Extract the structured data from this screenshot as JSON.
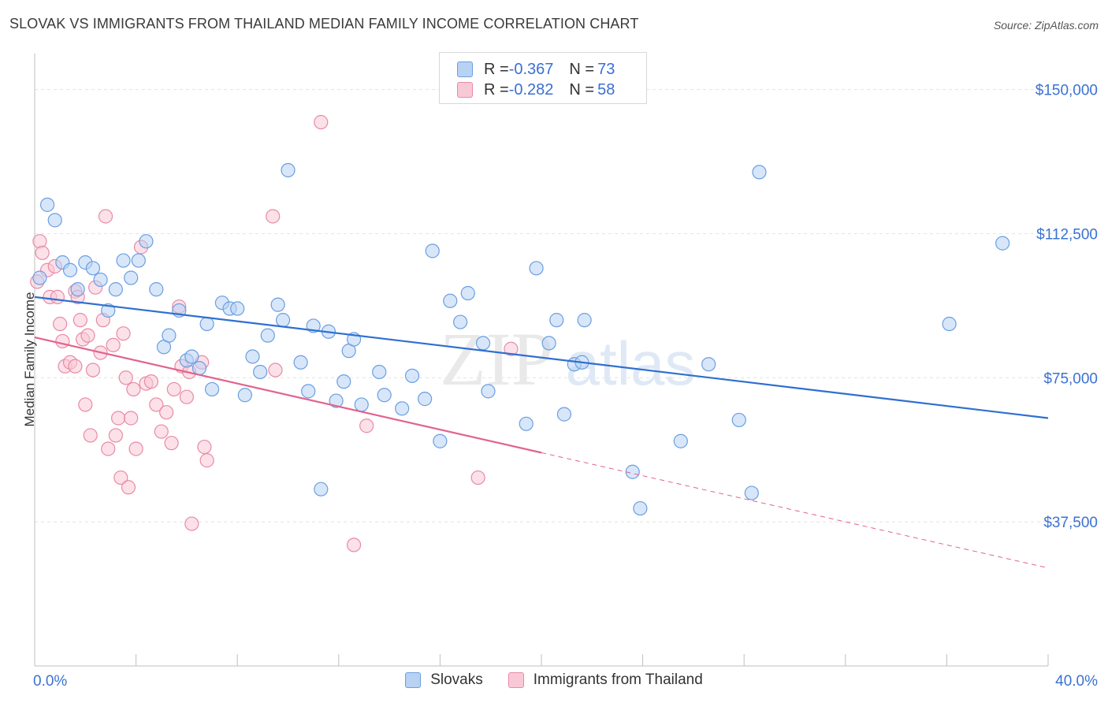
{
  "header": {
    "title": "SLOVAK VS IMMIGRANTS FROM THAILAND MEDIAN FAMILY INCOME CORRELATION CHART",
    "source": "Source: ZipAtlas.com"
  },
  "legend_top": {
    "rows": [
      {
        "r_label": "R = ",
        "r_value": "-0.367",
        "n_label": "N = ",
        "n_value": "73"
      },
      {
        "r_label": "R = ",
        "r_value": "-0.282",
        "n_label": "N = ",
        "n_value": "58"
      }
    ]
  },
  "watermark": {
    "zip": "ZIP",
    "atlas": "atlas"
  },
  "colors": {
    "blue_fill": "#b8d2f4",
    "blue_stroke": "#6a9fe0",
    "blue_line": "#2f6fd0",
    "pink_fill": "#f9c8d6",
    "pink_stroke": "#e98aa7",
    "pink_line": "#e0648e",
    "tick_label": "#3b72d2"
  },
  "chart_data": {
    "type": "scatter",
    "title": "SLOVAK VS IMMIGRANTS FROM THAILAND MEDIAN FAMILY INCOME CORRELATION CHART",
    "xlabel": "",
    "ylabel": "Median Family Income",
    "xlim": [
      0,
      40
    ],
    "ylim": [
      0,
      157500
    ],
    "x_tick_labels": [
      "0.0%",
      "40.0%"
    ],
    "y_ticks": [
      37500,
      75000,
      112500,
      150000
    ],
    "y_tick_labels": [
      "$37,500",
      "$75,000",
      "$112,500",
      "$150,000"
    ],
    "grid": "horizontal dashed",
    "legend_position": "bottom",
    "series": [
      {
        "name": "Slovaks",
        "r": -0.367,
        "n": 73,
        "trend": {
          "x": [
            0,
            40
          ],
          "y": [
            96000,
            64500
          ]
        },
        "points": [
          [
            0.2,
            101000
          ],
          [
            0.5,
            120000
          ],
          [
            0.8,
            116000
          ],
          [
            1.1,
            105000
          ],
          [
            1.4,
            103000
          ],
          [
            1.7,
            98000
          ],
          [
            2.0,
            105000
          ],
          [
            2.3,
            103500
          ],
          [
            2.6,
            100500
          ],
          [
            2.9,
            92500
          ],
          [
            3.2,
            98000
          ],
          [
            3.5,
            105500
          ],
          [
            3.8,
            101000
          ],
          [
            4.1,
            105500
          ],
          [
            4.4,
            110500
          ],
          [
            4.8,
            98000
          ],
          [
            5.1,
            83000
          ],
          [
            5.3,
            86000
          ],
          [
            5.7,
            92500
          ],
          [
            6.0,
            79500
          ],
          [
            6.2,
            80500
          ],
          [
            6.5,
            77500
          ],
          [
            6.8,
            89000
          ],
          [
            7.0,
            72000
          ],
          [
            7.4,
            94500
          ],
          [
            7.7,
            93000
          ],
          [
            8.0,
            93000
          ],
          [
            8.3,
            70500
          ],
          [
            8.6,
            80500
          ],
          [
            8.9,
            76500
          ],
          [
            9.2,
            86000
          ],
          [
            9.6,
            94000
          ],
          [
            9.8,
            90000
          ],
          [
            10.0,
            129000
          ],
          [
            10.5,
            79000
          ],
          [
            10.8,
            71500
          ],
          [
            11.0,
            88500
          ],
          [
            11.3,
            46000
          ],
          [
            11.6,
            87000
          ],
          [
            11.9,
            69000
          ],
          [
            12.2,
            74000
          ],
          [
            12.4,
            82000
          ],
          [
            12.6,
            85000
          ],
          [
            12.9,
            68000
          ],
          [
            13.6,
            76500
          ],
          [
            13.8,
            70500
          ],
          [
            14.5,
            67000
          ],
          [
            14.9,
            75500
          ],
          [
            15.4,
            69500
          ],
          [
            15.7,
            108000
          ],
          [
            16.0,
            58500
          ],
          [
            16.4,
            95000
          ],
          [
            16.8,
            89500
          ],
          [
            17.1,
            97000
          ],
          [
            17.7,
            84000
          ],
          [
            17.9,
            71500
          ],
          [
            19.4,
            63000
          ],
          [
            19.8,
            103500
          ],
          [
            20.3,
            84000
          ],
          [
            20.6,
            90000
          ],
          [
            20.9,
            65500
          ],
          [
            21.3,
            78500
          ],
          [
            21.6,
            79000
          ],
          [
            21.7,
            90000
          ],
          [
            23.6,
            50500
          ],
          [
            23.9,
            41000
          ],
          [
            25.5,
            58500
          ],
          [
            26.6,
            78500
          ],
          [
            27.8,
            64000
          ],
          [
            28.3,
            45000
          ],
          [
            28.6,
            128500
          ],
          [
            36.1,
            89000
          ],
          [
            38.2,
            110000
          ]
        ]
      },
      {
        "name": "Immigrants from Thailand",
        "r": -0.282,
        "n": 58,
        "trend": {
          "x": [
            0,
            20
          ],
          "y": [
            85500,
            55500
          ]
        },
        "trend_dashed": {
          "x": [
            20,
            40
          ],
          "y": [
            55500,
            25500
          ]
        },
        "points": [
          [
            0.1,
            100000
          ],
          [
            0.2,
            110500
          ],
          [
            0.3,
            107500
          ],
          [
            0.5,
            103000
          ],
          [
            0.6,
            96000
          ],
          [
            0.8,
            104000
          ],
          [
            0.9,
            96000
          ],
          [
            1.0,
            89000
          ],
          [
            1.1,
            84500
          ],
          [
            1.2,
            78000
          ],
          [
            1.4,
            79000
          ],
          [
            1.6,
            97500
          ],
          [
            1.6,
            78000
          ],
          [
            1.7,
            96000
          ],
          [
            1.8,
            90000
          ],
          [
            1.9,
            85000
          ],
          [
            2.0,
            68000
          ],
          [
            2.1,
            86000
          ],
          [
            2.2,
            60000
          ],
          [
            2.3,
            77000
          ],
          [
            2.4,
            98500
          ],
          [
            2.6,
            81500
          ],
          [
            2.7,
            90000
          ],
          [
            2.8,
            117000
          ],
          [
            2.9,
            56500
          ],
          [
            3.1,
            83500
          ],
          [
            3.2,
            60000
          ],
          [
            3.3,
            64500
          ],
          [
            3.4,
            49000
          ],
          [
            3.5,
            86500
          ],
          [
            3.6,
            75000
          ],
          [
            3.7,
            46500
          ],
          [
            3.8,
            64500
          ],
          [
            3.9,
            72000
          ],
          [
            4.0,
            56500
          ],
          [
            4.2,
            109000
          ],
          [
            4.4,
            73500
          ],
          [
            4.6,
            74000
          ],
          [
            4.8,
            68000
          ],
          [
            5.0,
            61000
          ],
          [
            5.2,
            66000
          ],
          [
            5.4,
            58000
          ],
          [
            5.5,
            72000
          ],
          [
            5.7,
            93500
          ],
          [
            5.8,
            78000
          ],
          [
            6.0,
            70000
          ],
          [
            6.1,
            76500
          ],
          [
            6.2,
            37000
          ],
          [
            6.6,
            79000
          ],
          [
            6.7,
            57000
          ],
          [
            6.8,
            53500
          ],
          [
            9.4,
            117000
          ],
          [
            9.5,
            77000
          ],
          [
            11.3,
            141500
          ],
          [
            12.6,
            31500
          ],
          [
            13.1,
            62500
          ],
          [
            17.5,
            49000
          ],
          [
            18.8,
            82500
          ]
        ]
      }
    ]
  }
}
